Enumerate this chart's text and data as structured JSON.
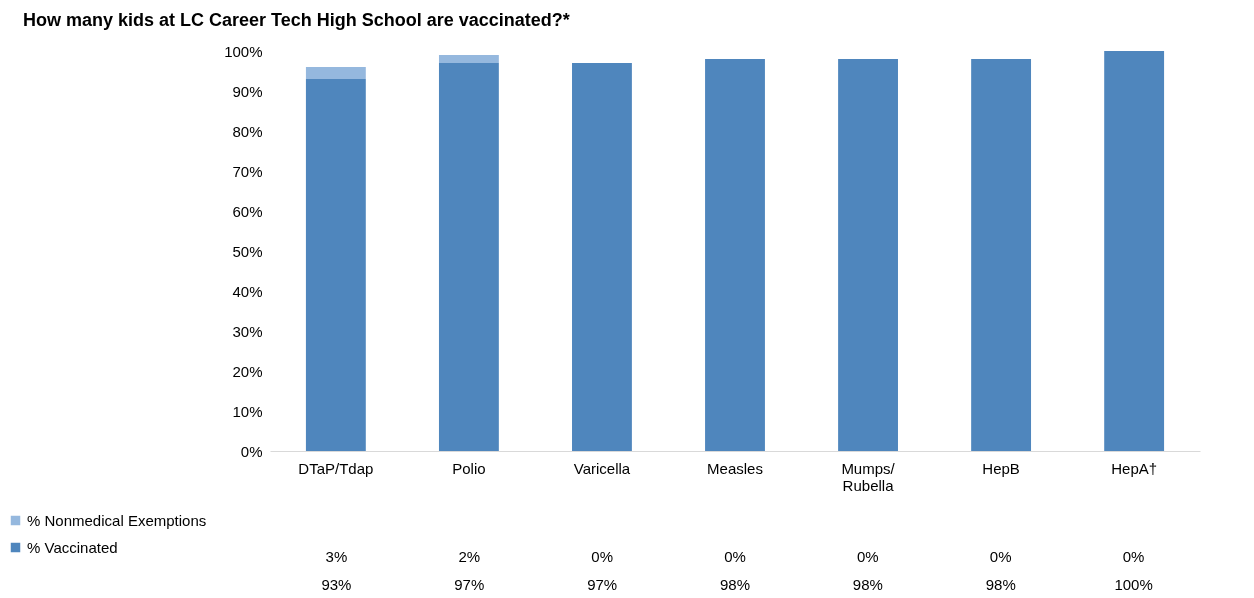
{
  "chart_data": {
    "type": "bar",
    "title": "How many kids at LC Career Tech High School are vaccinated?*",
    "categories": [
      "DTaP/Tdap",
      "Polio",
      "Varicella",
      "Measles",
      "Mumps/ Rubella",
      "HepB",
      "HepA†"
    ],
    "stacked": true,
    "series": [
      {
        "name": "% Vaccinated",
        "color": "#4f86bd",
        "values": [
          93,
          97,
          97,
          98,
          98,
          98,
          100
        ],
        "value_labels": [
          "93%",
          "97%",
          "97%",
          "98%",
          "98%",
          "98%",
          "100%"
        ]
      },
      {
        "name": "% Nonmedical Exemptions",
        "color": "#95b8de",
        "values": [
          3,
          2,
          0,
          0,
          0,
          0,
          0
        ],
        "value_labels": [
          "3%",
          "2%",
          "0%",
          "0%",
          "0%",
          "0%",
          "0%"
        ]
      }
    ],
    "ylim": [
      0,
      100
    ],
    "yticks": [
      {
        "value": 0,
        "label": "0%"
      },
      {
        "value": 10,
        "label": "10%"
      },
      {
        "value": 20,
        "label": "20%"
      },
      {
        "value": 30,
        "label": "30%"
      },
      {
        "value": 40,
        "label": "40%"
      },
      {
        "value": 50,
        "label": "50%"
      },
      {
        "value": 60,
        "label": "60%"
      },
      {
        "value": 70,
        "label": "70%"
      },
      {
        "value": 80,
        "label": "80%"
      },
      {
        "value": 90,
        "label": "90%"
      },
      {
        "value": 100,
        "label": "100%"
      }
    ],
    "legend": "bottom left",
    "grid": false
  }
}
